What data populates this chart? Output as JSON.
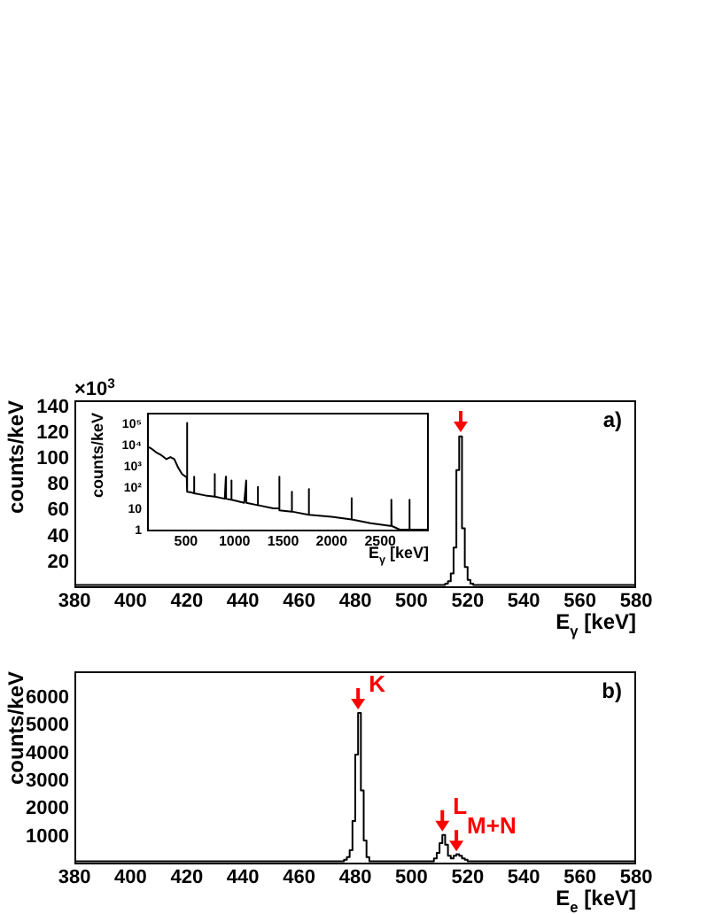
{
  "chart_data": [
    {
      "type": "histogram",
      "xlabel": "E$_{γ}$ [keV]",
      "ylabel": "counts/keV",
      "color": "#000000",
      "bins": [
        380,
        512,
        513,
        514,
        515,
        516,
        517,
        518,
        519,
        520,
        521,
        522,
        580
      ],
      "values": [
        1,
        2,
        4,
        10,
        30,
        90,
        116,
        45,
        15,
        5,
        2,
        1
      ],
      "xlim": [
        380,
        580
      ],
      "xticks": [
        380,
        400,
        420,
        440,
        460,
        480,
        500,
        520,
        540,
        560,
        580
      ],
      "ylim": [
        0,
        144
      ],
      "yticks": [
        20,
        40,
        60,
        80,
        100,
        120,
        140
      ],
      "annotations": [
        "a)",
        "×10$^{3}$"
      ],
      "grid": false,
      "legend": false
    },
    {
      "type": "line",
      "xlabel": "E$_{γ}$ [keV]",
      "ylabel": "counts/keV",
      "color": "#000000",
      "log": "y",
      "x": [
        100,
        150,
        200,
        250,
        300,
        340,
        380,
        420,
        460,
        500,
        508,
        511,
        514,
        560,
        583,
        584,
        586,
        700,
        795,
        796,
        798,
        900,
        911,
        913,
        965,
        968,
        970,
        1100,
        1120,
        1122,
        1238,
        1240,
        1242,
        1400,
        1460,
        1461,
        1463,
        1588,
        1590,
        1592,
        1764,
        1765,
        1767,
        2000,
        2204,
        2205,
        2207,
        2400,
        2600,
        2614,
        2615,
        2617,
        2700,
        2800,
        2801,
        2803,
        2900,
        3000
      ],
      "values": [
        8000,
        6000,
        4000,
        3000,
        2000,
        2500,
        2000,
        800,
        400,
        300,
        300,
        100000,
        60,
        55,
        50,
        300,
        50,
        40,
        35,
        400,
        35,
        28,
        300,
        28,
        25,
        200,
        25,
        18,
        200,
        18,
        14,
        100,
        14,
        10,
        10,
        300,
        8,
        7,
        60,
        7,
        5,
        80,
        5,
        4,
        3,
        30,
        3,
        2,
        1.5,
        1.5,
        25,
        1.5,
        1,
        1,
        25,
        1,
        1,
        1
      ],
      "xlim": [
        100,
        3000
      ],
      "xticks": [
        500,
        1000,
        1500,
        2000,
        2500
      ],
      "ylim": [
        1,
        300000
      ],
      "yticks": [
        1,
        10,
        {
          "value": 100,
          "label": "10²"
        },
        {
          "value": 1000,
          "label": "10³"
        },
        {
          "value": 10000,
          "label": "10⁴"
        },
        {
          "value": 100000,
          "label": "10⁵"
        }
      ],
      "grid": false,
      "legend": false
    },
    {
      "type": "histogram",
      "xlabel": "E$_{e}$ [keV]",
      "ylabel": "counts/keV",
      "color": "#000000",
      "bins": [
        380,
        476,
        477,
        478,
        479,
        480,
        481,
        482,
        483,
        484,
        485,
        508,
        509,
        510,
        511,
        512,
        513,
        514,
        515,
        516,
        517,
        518,
        519,
        520,
        580
      ],
      "values": [
        50,
        100,
        200,
        450,
        1500,
        3900,
        5400,
        2600,
        800,
        200,
        50,
        150,
        350,
        700,
        1000,
        650,
        250,
        150,
        250,
        300,
        250,
        150,
        100,
        50
      ],
      "xlim": [
        380,
        580
      ],
      "xticks": [
        380,
        400,
        420,
        440,
        460,
        480,
        500,
        520,
        540,
        560,
        580
      ],
      "ylim": [
        0,
        6900
      ],
      "yticks": [
        1000,
        2000,
        3000,
        4000,
        5000,
        6000
      ],
      "annotations": [
        "b)",
        {
          "text": "K",
          "x": 481,
          "y": 5400
        },
        {
          "text": "L",
          "x": 511,
          "y": 1000
        },
        {
          "text": "M+N",
          "x": 516,
          "y": 280
        }
      ],
      "grid": false,
      "legend": false
    }
  ]
}
